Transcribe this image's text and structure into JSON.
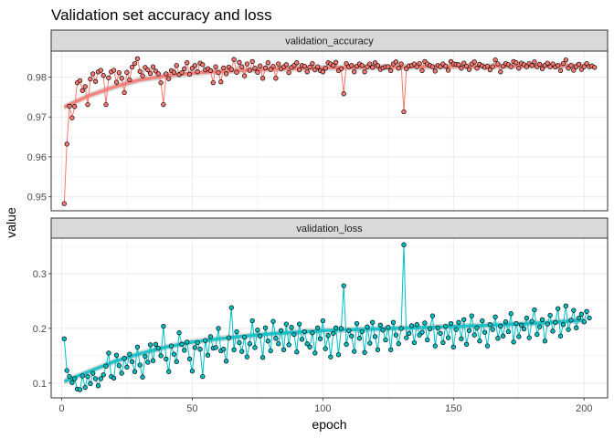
{
  "chart_data": {
    "type": "line",
    "title": "Validation set accuracy and loss",
    "xlabel": "epoch",
    "ylabel": "value",
    "xlim": [
      -4,
      209
    ],
    "x_ticks": [
      0,
      50,
      100,
      150,
      200
    ],
    "x_tick_labels": [
      "0",
      "50",
      "100",
      "150",
      "200"
    ],
    "grid": true,
    "legend": "none",
    "colors": {
      "validation_accuracy": "#F8766D",
      "validation_loss": "#00BFC4",
      "smooth_ribbon": "#bdbdbd",
      "strip_fill": "#d9d9d9"
    },
    "panels": [
      {
        "name": "validation_accuracy",
        "ylim": [
          0.9465,
          0.9865
        ],
        "y_ticks": [
          0.95,
          0.96,
          0.97,
          0.98
        ],
        "y_tick_labels": [
          "0.95",
          "0.96",
          "0.97",
          "0.98"
        ],
        "smooth": {
          "x": [
            1,
            10,
            20,
            30,
            40,
            50,
            60,
            80,
            100,
            120,
            140,
            160,
            180,
            200
          ],
          "y": [
            0.9725,
            0.9752,
            0.9775,
            0.9793,
            0.9803,
            0.981,
            0.9814,
            0.982,
            0.9823,
            0.9825,
            0.9826,
            0.9827,
            0.9828,
            0.9829
          ]
        },
        "values": [
          0.9483,
          0.9632,
          0.9727,
          0.9698,
          0.9726,
          0.9786,
          0.9791,
          0.9766,
          0.9776,
          0.9731,
          0.9795,
          0.9808,
          0.9789,
          0.9813,
          0.9817,
          0.9804,
          0.9731,
          0.9798,
          0.9813,
          0.9817,
          0.9787,
          0.9811,
          0.9797,
          0.9761,
          0.9812,
          0.9793,
          0.9825,
          0.9834,
          0.9846,
          0.9814,
          0.9803,
          0.9824,
          0.9818,
          0.9809,
          0.9826,
          0.9815,
          0.9808,
          0.9786,
          0.9731,
          0.9808,
          0.9796,
          0.9816,
          0.9812,
          0.9829,
          0.9806,
          0.9811,
          0.9821,
          0.9836,
          0.9807,
          0.9822,
          0.9829,
          0.9813,
          0.9835,
          0.9831,
          0.9818,
          0.9821,
          0.9816,
          0.9786,
          0.9826,
          0.9811,
          0.9788,
          0.9823,
          0.9808,
          0.9825,
          0.9819,
          0.9844,
          0.9812,
          0.9837,
          0.9826,
          0.9803,
          0.9833,
          0.9817,
          0.9839,
          0.9822,
          0.9812,
          0.9828,
          0.9797,
          0.9823,
          0.9836,
          0.9819,
          0.9827,
          0.9797,
          0.9833,
          0.9821,
          0.9826,
          0.9831,
          0.9811,
          0.9824,
          0.9829,
          0.9836,
          0.9818,
          0.9829,
          0.9827,
          0.9813,
          0.9825,
          0.9834,
          0.9818,
          0.9826,
          0.9816,
          0.9813,
          0.9822,
          0.9836,
          0.9833,
          0.9829,
          0.9837,
          0.9816,
          0.9821,
          0.9758,
          0.9834,
          0.9826,
          0.9829,
          0.9813,
          0.9827,
          0.9833,
          0.9829,
          0.9813,
          0.9826,
          0.9833,
          0.9824,
          0.9836,
          0.9829,
          0.9819,
          0.9823,
          0.9826,
          0.9826,
          0.9816,
          0.9833,
          0.9838,
          0.9822,
          0.9833,
          0.9713,
          0.9821,
          0.9828,
          0.9829,
          0.9833,
          0.9826,
          0.9834,
          0.9816,
          0.9839,
          0.9833,
          0.9829,
          0.9826,
          0.9815,
          0.9829,
          0.9826,
          0.9833,
          0.9827,
          0.9817,
          0.9839,
          0.9833,
          0.9832,
          0.9831,
          0.9822,
          0.9835,
          0.9827,
          0.9819,
          0.9833,
          0.9838,
          0.9822,
          0.9832,
          0.9828,
          0.9824,
          0.9827,
          0.9818,
          0.9826,
          0.9843,
          0.9833,
          0.9813,
          0.9827,
          0.9834,
          0.9831,
          0.9826,
          0.9839,
          0.9836,
          0.9822,
          0.9835,
          0.9831,
          0.9826,
          0.9834,
          0.9829,
          0.9838,
          0.9826,
          0.9832,
          0.9821,
          0.9829,
          0.9835,
          0.9826,
          0.9833,
          0.9825,
          0.9829,
          0.9816,
          0.9834,
          0.9843,
          0.9822,
          0.9829,
          0.9817,
          0.9826,
          0.9832,
          0.9819,
          0.9826,
          0.9834,
          0.9826,
          0.9828,
          0.9824
        ]
      },
      {
        "name": "validation_loss",
        "ylim": [
          0.073,
          0.365
        ],
        "y_ticks": [
          0.1,
          0.2,
          0.3
        ],
        "y_tick_labels": [
          "0.1",
          "0.2",
          "0.3"
        ],
        "smooth": {
          "x": [
            1,
            10,
            20,
            30,
            40,
            50,
            60,
            70,
            80,
            100,
            120,
            140,
            160,
            180,
            200
          ],
          "y": [
            0.103,
            0.12,
            0.139,
            0.154,
            0.166,
            0.175,
            0.181,
            0.186,
            0.19,
            0.196,
            0.199,
            0.202,
            0.205,
            0.209,
            0.215
          ]
        },
        "values": [
          0.181,
          0.123,
          0.112,
          0.101,
          0.108,
          0.089,
          0.088,
          0.113,
          0.092,
          0.112,
          0.099,
          0.118,
          0.108,
          0.095,
          0.108,
          0.115,
          0.131,
          0.155,
          0.112,
          0.109,
          0.151,
          0.132,
          0.118,
          0.145,
          0.129,
          0.153,
          0.139,
          0.121,
          0.166,
          0.133,
          0.111,
          0.149,
          0.138,
          0.17,
          0.141,
          0.171,
          0.164,
          0.15,
          0.204,
          0.144,
          0.121,
          0.168,
          0.153,
          0.139,
          0.192,
          0.171,
          0.16,
          0.175,
          0.144,
          0.122,
          0.165,
          0.174,
          0.162,
          0.112,
          0.178,
          0.151,
          0.185,
          0.164,
          0.165,
          0.2,
          0.159,
          0.162,
          0.14,
          0.183,
          0.238,
          0.161,
          0.194,
          0.174,
          0.158,
          0.184,
          0.148,
          0.172,
          0.214,
          0.165,
          0.197,
          0.186,
          0.147,
          0.201,
          0.177,
          0.159,
          0.213,
          0.182,
          0.172,
          0.196,
          0.161,
          0.208,
          0.17,
          0.202,
          0.189,
          0.157,
          0.208,
          0.18,
          0.194,
          0.172,
          0.166,
          0.192,
          0.155,
          0.201,
          0.181,
          0.214,
          0.163,
          0.187,
          0.148,
          0.191,
          0.201,
          0.152,
          0.2,
          0.278,
          0.171,
          0.196,
          0.186,
          0.158,
          0.209,
          0.182,
          0.194,
          0.156,
          0.203,
          0.173,
          0.211,
          0.185,
          0.161,
          0.206,
          0.197,
          0.179,
          0.202,
          0.161,
          0.211,
          0.188,
          0.172,
          0.2,
          0.353,
          0.183,
          0.191,
          0.205,
          0.174,
          0.207,
          0.188,
          0.193,
          0.21,
          0.179,
          0.199,
          0.223,
          0.168,
          0.201,
          0.191,
          0.174,
          0.204,
          0.183,
          0.209,
          0.166,
          0.198,
          0.211,
          0.181,
          0.216,
          0.171,
          0.196,
          0.223,
          0.188,
          0.201,
          0.177,
          0.214,
          0.193,
          0.168,
          0.207,
          0.198,
          0.221,
          0.182,
          0.204,
          0.186,
          0.212,
          0.194,
          0.227,
          0.175,
          0.209,
          0.185,
          0.206,
          0.199,
          0.219,
          0.183,
          0.213,
          0.234,
          0.189,
          0.203,
          0.216,
          0.177,
          0.208,
          0.224,
          0.195,
          0.211,
          0.236,
          0.186,
          0.207,
          0.241,
          0.198,
          0.215,
          0.233,
          0.201,
          0.219,
          0.226,
          0.212,
          0.231,
          0.219
        ]
      }
    ]
  }
}
